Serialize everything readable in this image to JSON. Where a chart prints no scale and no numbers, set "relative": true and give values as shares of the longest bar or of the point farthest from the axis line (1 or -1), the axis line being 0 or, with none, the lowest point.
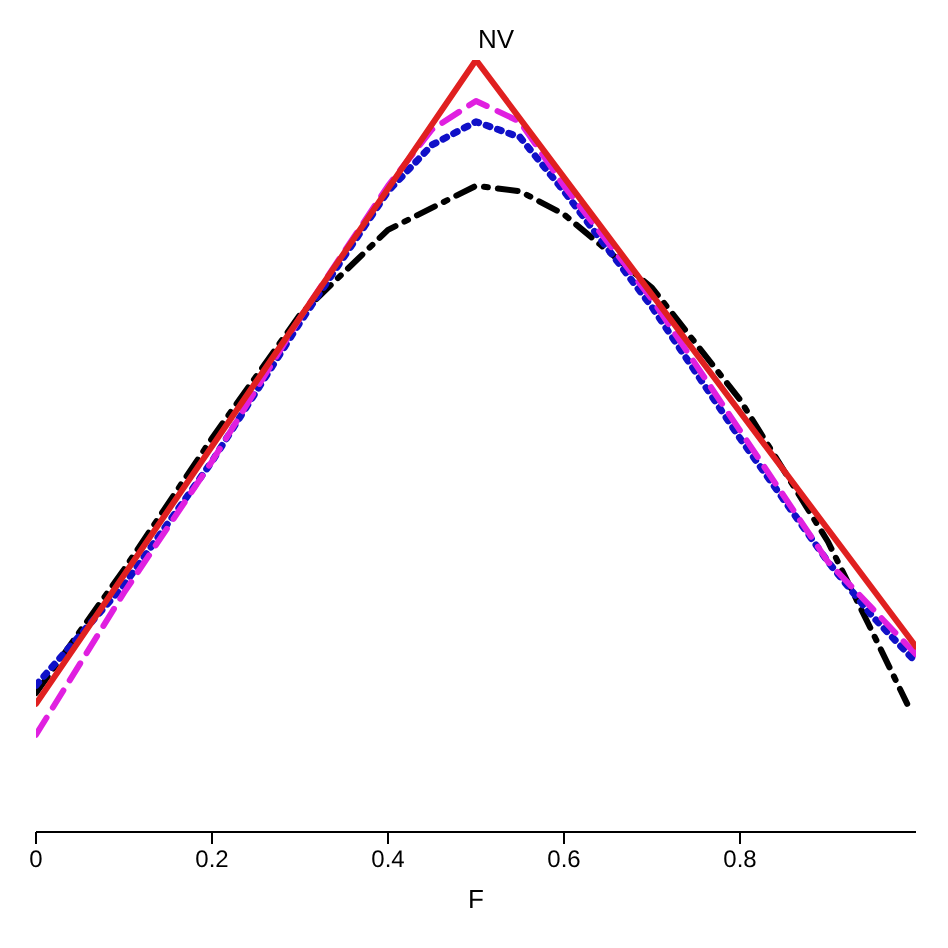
{
  "chart_data": {
    "type": "line",
    "title": "NV",
    "xlabel": "F",
    "relative": true,
    "xlim": [
      0,
      1
    ],
    "xticks": [
      0,
      0.2,
      0.4,
      0.6,
      0.8
    ],
    "marker": "none",
    "series": [
      {
        "color": "#000000",
        "line_style": "dashdot",
        "x": [
          0,
          0.1,
          0.2,
          0.3,
          0.4,
          0.5,
          0.55,
          0.6,
          0.7,
          0.8,
          0.9,
          0.95,
          0.99
        ],
        "values": [
          0.18,
          0.34,
          0.51,
          0.67,
          0.78,
          0.837,
          0.83,
          0.8,
          0.705,
          0.56,
          0.376,
          0.26,
          0.166
        ]
      },
      {
        "color": "#1010c8",
        "line_style": "dotted",
        "x": [
          0,
          0.1,
          0.2,
          0.3,
          0.4,
          0.45,
          0.5,
          0.55,
          0.6,
          0.7,
          0.8,
          0.9,
          0.95,
          1
        ],
        "values": [
          0.19,
          0.32,
          0.48,
          0.66,
          0.83,
          0.89,
          0.92,
          0.9,
          0.83,
          0.68,
          0.51,
          0.35,
          0.28,
          0.22
        ]
      },
      {
        "color": "#e020e0",
        "line_style": "dashed",
        "x": [
          0,
          0.1,
          0.2,
          0.3,
          0.4,
          0.45,
          0.5,
          0.55,
          0.6,
          0.7,
          0.8,
          0.9,
          0.95,
          1
        ],
        "values": [
          0.126,
          0.31,
          0.48,
          0.666,
          0.837,
          0.91,
          0.947,
          0.92,
          0.837,
          0.69,
          0.52,
          0.35,
          0.29,
          0.23
        ]
      },
      {
        "color": "#e02020",
        "line_style": "solid",
        "x": [
          0,
          0.5,
          1
        ],
        "values": [
          0.166,
          1,
          0.24
        ]
      }
    ]
  }
}
